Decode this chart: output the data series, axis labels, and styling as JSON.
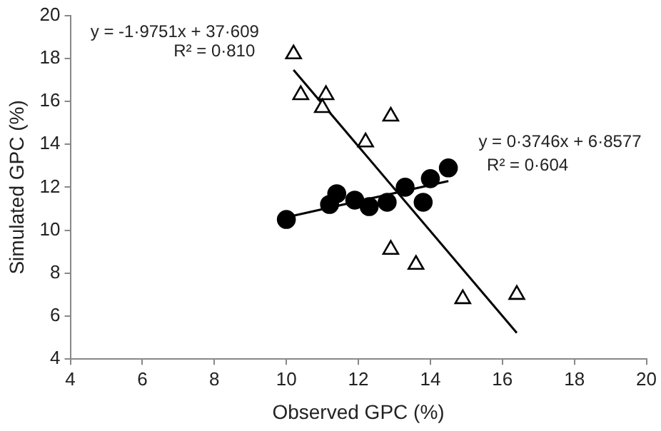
{
  "chart_data": {
    "type": "scatter",
    "xlabel": "Observed GPC (%)",
    "ylabel": "Simulated GPC (%)",
    "xlim": [
      4,
      20
    ],
    "xticks": [
      4,
      6,
      8,
      10,
      12,
      14,
      16,
      18,
      20
    ],
    "ylim": [
      4,
      20
    ],
    "yticks": [
      4,
      6,
      8,
      10,
      12,
      14,
      16,
      18,
      20
    ],
    "grid": false,
    "legend": false,
    "series": [
      {
        "marker": "triangle",
        "color": "#000000",
        "x": [
          10.2,
          10.4,
          11.1,
          11.0,
          12.2,
          12.9,
          12.9,
          13.6,
          14.9,
          16.4
        ],
        "values": [
          18.2,
          16.3,
          16.3,
          15.7,
          14.1,
          15.3,
          9.1,
          8.4,
          6.8,
          7.0
        ]
      },
      {
        "marker": "circle",
        "color": "#000000",
        "x": [
          10.0,
          11.2,
          11.4,
          11.9,
          12.3,
          12.8,
          13.3,
          13.8,
          14.0,
          14.5
        ],
        "values": [
          10.5,
          11.2,
          11.7,
          11.4,
          11.1,
          11.3,
          12.0,
          11.3,
          12.4,
          12.9
        ]
      },
      {
        "type": "line",
        "marker": "none",
        "color": "#000000",
        "x": [
          10.2,
          16.4
        ],
        "values": [
          17.46,
          5.22
        ]
      },
      {
        "type": "line",
        "marker": "none",
        "color": "#000000",
        "x": [
          10.0,
          14.5
        ],
        "values": [
          10.6,
          12.29
        ]
      }
    ],
    "annotations": [
      "y = -1·9751x + 37·609",
      "R² = 0·810",
      "y = 0·3746x + 6·8577",
      "R² = 0·604"
    ]
  }
}
